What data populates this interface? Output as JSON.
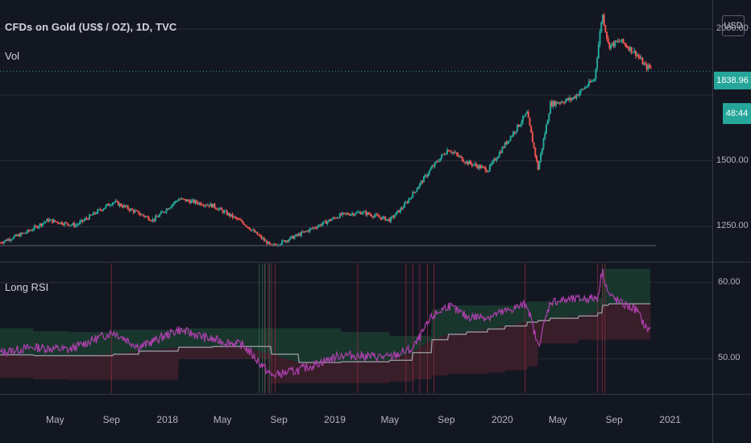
{
  "header": {
    "title": "CFDs on Gold (US$ / OZ), 1D, TVC",
    "volume_label": "Vol",
    "currency": "USD",
    "last_price": "1838.96",
    "countdown": "48:44"
  },
  "rsi_panel": {
    "label": "Long RSI"
  },
  "colors": {
    "background": "#131722",
    "up": "#26a69a",
    "down": "#ef5350",
    "rsi_line": "#b040b0",
    "rsi_mid": "#9598a1",
    "upper_band_fill": "#1b3a2f",
    "lower_band_fill": "#3d1f2a",
    "grid": "#2a2e39"
  },
  "chart_data": [
    {
      "type": "line",
      "name": "price",
      "ylim": [
        1120,
        2110
      ],
      "yticks": [
        "1250.00",
        "1500.00",
        "2000.00"
      ],
      "xticks": [
        "May",
        "Sep",
        "2018",
        "May",
        "Sep",
        "2019",
        "May",
        "Sep",
        "2020",
        "May",
        "Sep",
        "2021"
      ],
      "x": [
        "2017-01-01",
        "2017-03-01",
        "2017-04-15",
        "2017-06-15",
        "2017-09-05",
        "2017-12-01",
        "2018-01-25",
        "2018-04-10",
        "2018-06-15",
        "2018-08-16",
        "2018-10-15",
        "2019-01-15",
        "2019-03-01",
        "2019-05-01",
        "2019-06-01",
        "2019-08-01",
        "2019-09-05",
        "2019-10-15",
        "2019-12-01",
        "2020-01-08",
        "2020-02-24",
        "2020-03-19",
        "2020-04-15",
        "2020-06-01",
        "2020-07-20",
        "2020-08-06",
        "2020-08-20",
        "2020-09-15",
        "2020-10-20",
        "2020-11-09",
        "2020-11-20"
      ],
      "close": [
        1190,
        1230,
        1275,
        1255,
        1345,
        1275,
        1355,
        1330,
        1265,
        1175,
        1220,
        1295,
        1305,
        1275,
        1330,
        1475,
        1545,
        1495,
        1465,
        1565,
        1680,
        1470,
        1715,
        1735,
        1810,
        2060,
        1935,
        1955,
        1905,
        1855,
        1855
      ]
    },
    {
      "type": "line",
      "name": "Long RSI",
      "ylim": [
        45.5,
        62.5
      ],
      "yticks": [
        "60.00",
        "50.00"
      ],
      "x": [
        "2017-01-01",
        "2017-03-15",
        "2017-06-01",
        "2017-09-05",
        "2017-11-01",
        "2018-01-25",
        "2018-04-10",
        "2018-06-15",
        "2018-08-16",
        "2018-10-15",
        "2019-01-15",
        "2019-05-01",
        "2019-06-20",
        "2019-08-01",
        "2019-09-05",
        "2019-10-15",
        "2019-12-01",
        "2020-01-08",
        "2020-02-24",
        "2020-03-19",
        "2020-04-15",
        "2020-06-15",
        "2020-07-27",
        "2020-08-06",
        "2020-08-20",
        "2020-09-15",
        "2020-10-20",
        "2020-11-09",
        "2020-11-20"
      ],
      "rsi": [
        50.8,
        51.5,
        51.2,
        53.5,
        51.5,
        53.8,
        52.5,
        51.8,
        47.8,
        48.5,
        50.5,
        50.2,
        51.3,
        55.5,
        57.0,
        55.5,
        55.5,
        56.2,
        57.2,
        51.6,
        57.5,
        57.8,
        58.0,
        61.6,
        58.4,
        57.3,
        56.4,
        54.0,
        53.8
      ],
      "midline": [
        50.5,
        50.4,
        50.4,
        50.6,
        51.0,
        51.5,
        51.6,
        51.6,
        50.6,
        49.5,
        49.6,
        49.8,
        50.8,
        52.5,
        53.2,
        53.5,
        53.9,
        54.3,
        54.8,
        55.0,
        55.3,
        55.6,
        56.0,
        57.0,
        57.2,
        57.2,
        57.2,
        57.2,
        57.2
      ],
      "upper_band": [
        54.0,
        53.6,
        53.5,
        53.8,
        53.8,
        54.0,
        54.0,
        54.0,
        54.0,
        54.0,
        53.5,
        53.0,
        53.0,
        56.5,
        57.0,
        57.0,
        57.0,
        57.0,
        57.5,
        57.5,
        57.5,
        58.0,
        58.0,
        61.8,
        61.8,
        61.8,
        61.8,
        61.8,
        61.8
      ],
      "lower_band": [
        47.5,
        47.3,
        47.2,
        47.2,
        47.2,
        50.0,
        50.0,
        50.0,
        46.8,
        46.8,
        46.8,
        47.0,
        47.3,
        47.8,
        48.0,
        48.0,
        48.2,
        48.5,
        49.0,
        52.0,
        52.0,
        52.5,
        52.5,
        52.5,
        52.5,
        52.5,
        52.5,
        52.5,
        52.5
      ],
      "signal_dates_red": [
        "2017-09-01",
        "2018-08-01",
        "2018-08-09",
        "2018-08-16",
        "2018-08-24",
        "2019-02-20",
        "2019-06-05",
        "2019-06-20",
        "2019-07-05",
        "2019-07-22",
        "2019-08-05",
        "2020-02-20",
        "2020-07-27",
        "2020-08-06",
        "2020-08-12"
      ],
      "signal_dates_green": [
        "2018-07-20",
        "2018-07-27",
        "2018-08-02",
        "2018-08-12"
      ]
    }
  ]
}
